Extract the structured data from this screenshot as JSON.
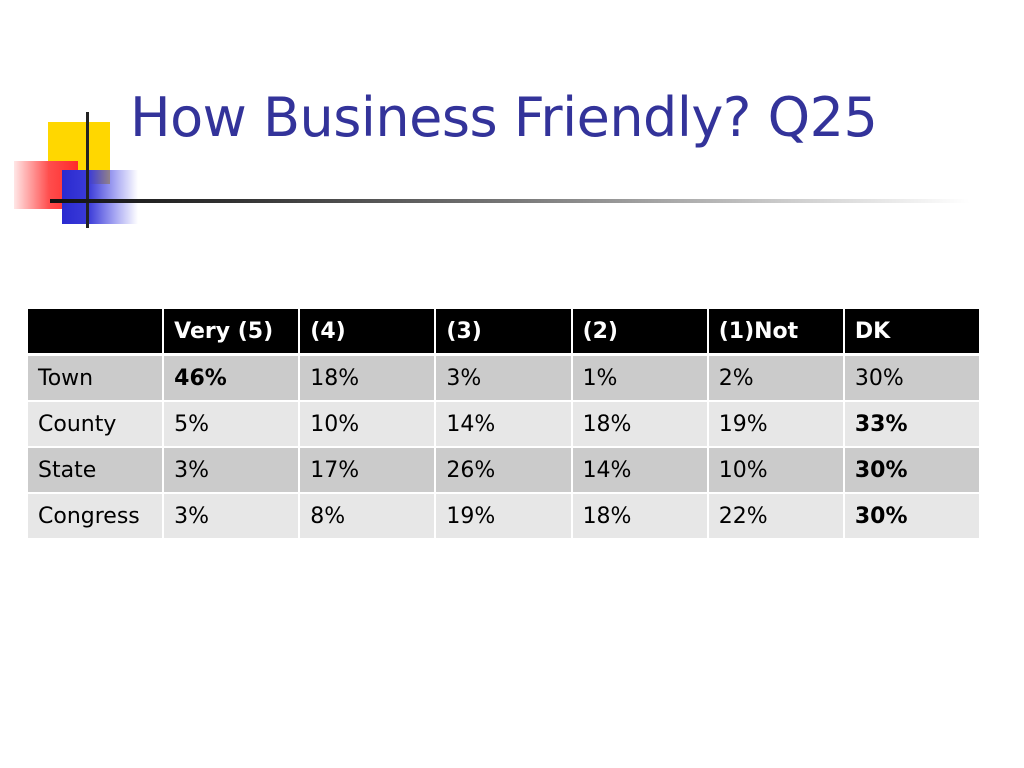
{
  "slide": {
    "title": "How Business Friendly? Q25"
  },
  "table": {
    "headers": [
      "",
      "Very (5)",
      "(4)",
      "(3)",
      "(2)",
      "(1)Not",
      "DK"
    ],
    "rows": [
      {
        "label": "Town",
        "cells": [
          "46%",
          "18%",
          "3%",
          "1%",
          "2%",
          "30%"
        ]
      },
      {
        "label": "County",
        "cells": [
          "5%",
          "10%",
          "14%",
          "18%",
          "19%",
          "33%"
        ]
      },
      {
        "label": "State",
        "cells": [
          "3%",
          "17%",
          "26%",
          "14%",
          "10%",
          "30%"
        ]
      },
      {
        "label": "Congress",
        "cells": [
          "3%",
          "8%",
          "19%",
          "18%",
          "22%",
          "30%"
        ]
      }
    ],
    "bold_cells": [
      [
        0,
        0
      ],
      [
        1,
        5
      ],
      [
        2,
        5
      ],
      [
        3,
        5
      ]
    ]
  },
  "colors": {
    "title": "#33339a",
    "header_bg": "#000000",
    "row_dark": "#cbcbcb",
    "row_light": "#e7e7e7",
    "deco_yellow": "#ffd700",
    "deco_red": "#ff3333",
    "deco_blue": "#3333cc"
  }
}
